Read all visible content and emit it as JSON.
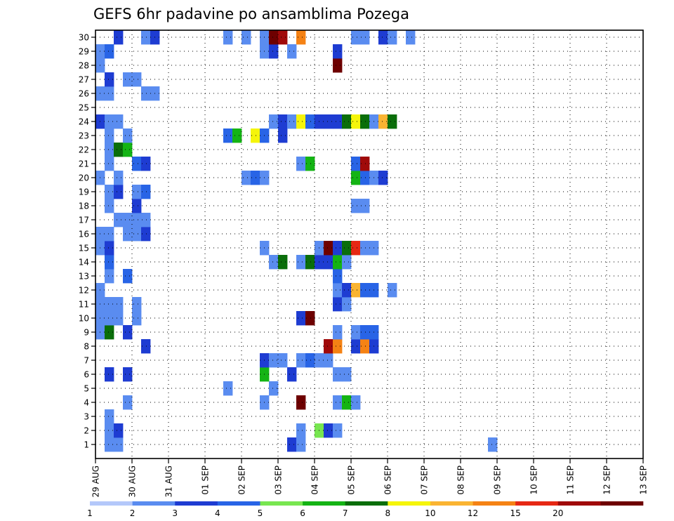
{
  "chart_data": {
    "type": "heatmap",
    "title": "GEFS 6hr padavine po ansamblima Pozega",
    "xlabel": "",
    "ylabel": "",
    "y_ticks": [
      "1",
      "2",
      "3",
      "4",
      "5",
      "6",
      "7",
      "8",
      "9",
      "10",
      "11",
      "12",
      "13",
      "14",
      "15",
      "16",
      "17",
      "18",
      "19",
      "20",
      "21",
      "22",
      "23",
      "24",
      "25",
      "26",
      "27",
      "28",
      "29",
      "30"
    ],
    "x_ticks": [
      "29 AUG",
      "30 AUG",
      "31 AUG",
      "01 SEP",
      "02 SEP",
      "03 SEP",
      "04 SEP",
      "05 SEP",
      "06 SEP",
      "07 SEP",
      "08 SEP",
      "09 SEP",
      "10 SEP",
      "11 SEP",
      "12 SEP",
      "13 SEP"
    ],
    "x_range": [
      "29 AUG 00Z",
      "13 SEP 00Z"
    ],
    "time_step_hours": 6,
    "y_range": [
      1,
      30
    ],
    "grid": true,
    "colorbar": {
      "labels": [
        "1",
        "2",
        "3",
        "4",
        "5",
        "6",
        "7",
        "8",
        "10",
        "12",
        "15",
        "20"
      ],
      "colors": [
        "#b4c8fa",
        "#5a8cf0",
        "#1e3cd2",
        "#2864e6",
        "#78e650",
        "#14b414",
        "#0a6e0a",
        "#f5f50a",
        "#fab432",
        "#f58214",
        "#e62814",
        "#a00a0a",
        "#6e0000"
      ]
    },
    "cells": [
      {
        "m": 1,
        "t": 1,
        "c": 1
      },
      {
        "m": 1,
        "t": 2,
        "c": 1
      },
      {
        "m": 1,
        "t": 21,
        "c": 2
      },
      {
        "m": 1,
        "t": 22,
        "c": 1
      },
      {
        "m": 1,
        "t": 43,
        "c": 1
      },
      {
        "m": 2,
        "t": 1,
        "c": 1
      },
      {
        "m": 2,
        "t": 2,
        "c": 2
      },
      {
        "m": 2,
        "t": 22,
        "c": 1
      },
      {
        "m": 2,
        "t": 24,
        "c": 4
      },
      {
        "m": 2,
        "t": 25,
        "c": 2
      },
      {
        "m": 2,
        "t": 26,
        "c": 1
      },
      {
        "m": 3,
        "t": 1,
        "c": 1
      },
      {
        "m": 4,
        "t": 3,
        "c": 1
      },
      {
        "m": 4,
        "t": 18,
        "c": 1
      },
      {
        "m": 4,
        "t": 22,
        "c": 12
      },
      {
        "m": 4,
        "t": 26,
        "c": 1
      },
      {
        "m": 4,
        "t": 27,
        "c": 5
      },
      {
        "m": 4,
        "t": 28,
        "c": 1
      },
      {
        "m": 5,
        "t": 14,
        "c": 1
      },
      {
        "m": 5,
        "t": 19,
        "c": 1
      },
      {
        "m": 6,
        "t": 1,
        "c": 2
      },
      {
        "m": 6,
        "t": 3,
        "c": 2
      },
      {
        "m": 6,
        "t": 18,
        "c": 5
      },
      {
        "m": 6,
        "t": 21,
        "c": 2
      },
      {
        "m": 6,
        "t": 26,
        "c": 1
      },
      {
        "m": 6,
        "t": 27,
        "c": 1
      },
      {
        "m": 7,
        "t": 18,
        "c": 2
      },
      {
        "m": 7,
        "t": 19,
        "c": 1
      },
      {
        "m": 7,
        "t": 20,
        "c": 1
      },
      {
        "m": 7,
        "t": 22,
        "c": 1
      },
      {
        "m": 7,
        "t": 23,
        "c": 3
      },
      {
        "m": 7,
        "t": 24,
        "c": 1
      },
      {
        "m": 7,
        "t": 25,
        "c": 1
      },
      {
        "m": 8,
        "t": 5,
        "c": 2
      },
      {
        "m": 8,
        "t": 25,
        "c": 11
      },
      {
        "m": 8,
        "t": 26,
        "c": 9
      },
      {
        "m": 8,
        "t": 28,
        "c": 2
      },
      {
        "m": 8,
        "t": 29,
        "c": 9
      },
      {
        "m": 8,
        "t": 30,
        "c": 2
      },
      {
        "m": 9,
        "t": 0,
        "c": 1
      },
      {
        "m": 9,
        "t": 1,
        "c": 6
      },
      {
        "m": 9,
        "t": 3,
        "c": 2
      },
      {
        "m": 9,
        "t": 26,
        "c": 1
      },
      {
        "m": 9,
        "t": 28,
        "c": 1
      },
      {
        "m": 9,
        "t": 29,
        "c": 3
      },
      {
        "m": 9,
        "t": 30,
        "c": 3
      },
      {
        "m": 10,
        "t": 0,
        "c": 1
      },
      {
        "m": 10,
        "t": 1,
        "c": 1
      },
      {
        "m": 10,
        "t": 2,
        "c": 1
      },
      {
        "m": 10,
        "t": 4,
        "c": 1
      },
      {
        "m": 10,
        "t": 22,
        "c": 2
      },
      {
        "m": 10,
        "t": 23,
        "c": 12
      },
      {
        "m": 11,
        "t": 0,
        "c": 1
      },
      {
        "m": 11,
        "t": 1,
        "c": 1
      },
      {
        "m": 11,
        "t": 2,
        "c": 1
      },
      {
        "m": 11,
        "t": 4,
        "c": 1
      },
      {
        "m": 11,
        "t": 26,
        "c": 2
      },
      {
        "m": 11,
        "t": 27,
        "c": 1
      },
      {
        "m": 12,
        "t": 0,
        "c": 1
      },
      {
        "m": 12,
        "t": 26,
        "c": 1
      },
      {
        "m": 12,
        "t": 27,
        "c": 2
      },
      {
        "m": 12,
        "t": 28,
        "c": 8
      },
      {
        "m": 12,
        "t": 29,
        "c": 3
      },
      {
        "m": 12,
        "t": 30,
        "c": 3
      },
      {
        "m": 12,
        "t": 32,
        "c": 1
      },
      {
        "m": 13,
        "t": 1,
        "c": 1
      },
      {
        "m": 13,
        "t": 3,
        "c": 3
      },
      {
        "m": 13,
        "t": 26,
        "c": 3
      },
      {
        "m": 14,
        "t": 1,
        "c": 3
      },
      {
        "m": 14,
        "t": 19,
        "c": 1
      },
      {
        "m": 14,
        "t": 20,
        "c": 6
      },
      {
        "m": 14,
        "t": 22,
        "c": 1
      },
      {
        "m": 14,
        "t": 23,
        "c": 6
      },
      {
        "m": 14,
        "t": 24,
        "c": 2
      },
      {
        "m": 14,
        "t": 25,
        "c": 2
      },
      {
        "m": 14,
        "t": 26,
        "c": 5
      },
      {
        "m": 14,
        "t": 27,
        "c": 1
      },
      {
        "m": 15,
        "t": 0,
        "c": 1
      },
      {
        "m": 15,
        "t": 1,
        "c": 2
      },
      {
        "m": 15,
        "t": 18,
        "c": 1
      },
      {
        "m": 15,
        "t": 24,
        "c": 1
      },
      {
        "m": 15,
        "t": 25,
        "c": 12
      },
      {
        "m": 15,
        "t": 26,
        "c": 2
      },
      {
        "m": 15,
        "t": 27,
        "c": 6
      },
      {
        "m": 15,
        "t": 28,
        "c": 10
      },
      {
        "m": 15,
        "t": 29,
        "c": 1
      },
      {
        "m": 15,
        "t": 30,
        "c": 1
      },
      {
        "m": 16,
        "t": 0,
        "c": 1
      },
      {
        "m": 16,
        "t": 1,
        "c": 1
      },
      {
        "m": 16,
        "t": 3,
        "c": 1
      },
      {
        "m": 16,
        "t": 4,
        "c": 1
      },
      {
        "m": 16,
        "t": 5,
        "c": 2
      },
      {
        "m": 17,
        "t": 2,
        "c": 1
      },
      {
        "m": 17,
        "t": 3,
        "c": 1
      },
      {
        "m": 17,
        "t": 4,
        "c": 1
      },
      {
        "m": 17,
        "t": 5,
        "c": 1
      },
      {
        "m": 18,
        "t": 1,
        "c": 1
      },
      {
        "m": 18,
        "t": 4,
        "c": 2
      },
      {
        "m": 18,
        "t": 28,
        "c": 1
      },
      {
        "m": 18,
        "t": 29,
        "c": 1
      },
      {
        "m": 19,
        "t": 1,
        "c": 1
      },
      {
        "m": 19,
        "t": 2,
        "c": 2
      },
      {
        "m": 19,
        "t": 4,
        "c": 1
      },
      {
        "m": 19,
        "t": 5,
        "c": 3
      },
      {
        "m": 20,
        "t": 0,
        "c": 1
      },
      {
        "m": 20,
        "t": 2,
        "c": 1
      },
      {
        "m": 20,
        "t": 16,
        "c": 1
      },
      {
        "m": 20,
        "t": 17,
        "c": 3
      },
      {
        "m": 20,
        "t": 18,
        "c": 1
      },
      {
        "m": 20,
        "t": 28,
        "c": 5
      },
      {
        "m": 20,
        "t": 29,
        "c": 3
      },
      {
        "m": 20,
        "t": 30,
        "c": 1
      },
      {
        "m": 20,
        "t": 31,
        "c": 2
      },
      {
        "m": 21,
        "t": 1,
        "c": 1
      },
      {
        "m": 21,
        "t": 4,
        "c": 3
      },
      {
        "m": 21,
        "t": 5,
        "c": 2
      },
      {
        "m": 21,
        "t": 22,
        "c": 1
      },
      {
        "m": 21,
        "t": 23,
        "c": 5
      },
      {
        "m": 21,
        "t": 28,
        "c": 3
      },
      {
        "m": 21,
        "t": 29,
        "c": 11
      },
      {
        "m": 22,
        "t": 1,
        "c": 1
      },
      {
        "m": 22,
        "t": 2,
        "c": 6
      },
      {
        "m": 22,
        "t": 3,
        "c": 5
      },
      {
        "m": 23,
        "t": 1,
        "c": 1
      },
      {
        "m": 23,
        "t": 3,
        "c": 1
      },
      {
        "m": 23,
        "t": 14,
        "c": 3
      },
      {
        "m": 23,
        "t": 15,
        "c": 5
      },
      {
        "m": 23,
        "t": 17,
        "c": 7
      },
      {
        "m": 23,
        "t": 18,
        "c": 3
      },
      {
        "m": 23,
        "t": 20,
        "c": 2
      },
      {
        "m": 24,
        "t": 0,
        "c": 2
      },
      {
        "m": 24,
        "t": 1,
        "c": 1
      },
      {
        "m": 24,
        "t": 2,
        "c": 1
      },
      {
        "m": 24,
        "t": 19,
        "c": 1
      },
      {
        "m": 24,
        "t": 20,
        "c": 2
      },
      {
        "m": 24,
        "t": 21,
        "c": 1
      },
      {
        "m": 24,
        "t": 22,
        "c": 7
      },
      {
        "m": 24,
        "t": 23,
        "c": 3
      },
      {
        "m": 24,
        "t": 24,
        "c": 2
      },
      {
        "m": 24,
        "t": 25,
        "c": 2
      },
      {
        "m": 24,
        "t": 26,
        "c": 2
      },
      {
        "m": 24,
        "t": 27,
        "c": 6
      },
      {
        "m": 24,
        "t": 28,
        "c": 7
      },
      {
        "m": 24,
        "t": 29,
        "c": 6
      },
      {
        "m": 24,
        "t": 30,
        "c": 1
      },
      {
        "m": 24,
        "t": 31,
        "c": 8
      },
      {
        "m": 24,
        "t": 32,
        "c": 6
      },
      {
        "m": 26,
        "t": 0,
        "c": 1
      },
      {
        "m": 26,
        "t": 1,
        "c": 1
      },
      {
        "m": 26,
        "t": 5,
        "c": 1
      },
      {
        "m": 26,
        "t": 6,
        "c": 1
      },
      {
        "m": 27,
        "t": 1,
        "c": 2
      },
      {
        "m": 27,
        "t": 3,
        "c": 1
      },
      {
        "m": 27,
        "t": 4,
        "c": 1
      },
      {
        "m": 28,
        "t": 0,
        "c": 1
      },
      {
        "m": 28,
        "t": 26,
        "c": 12
      },
      {
        "m": 29,
        "t": 0,
        "c": 1
      },
      {
        "m": 29,
        "t": 1,
        "c": 3
      },
      {
        "m": 29,
        "t": 18,
        "c": 1
      },
      {
        "m": 29,
        "t": 19,
        "c": 2
      },
      {
        "m": 29,
        "t": 21,
        "c": 1
      },
      {
        "m": 29,
        "t": 26,
        "c": 2
      },
      {
        "m": 30,
        "t": 2,
        "c": 2
      },
      {
        "m": 30,
        "t": 5,
        "c": 1
      },
      {
        "m": 30,
        "t": 6,
        "c": 2
      },
      {
        "m": 30,
        "t": 14,
        "c": 1
      },
      {
        "m": 30,
        "t": 16,
        "c": 1
      },
      {
        "m": 30,
        "t": 18,
        "c": 1
      },
      {
        "m": 30,
        "t": 19,
        "c": 12
      },
      {
        "m": 30,
        "t": 20,
        "c": 11
      },
      {
        "m": 30,
        "t": 22,
        "c": 9
      },
      {
        "m": 30,
        "t": 28,
        "c": 1
      },
      {
        "m": 30,
        "t": 29,
        "c": 1
      },
      {
        "m": 30,
        "t": 31,
        "c": 2
      },
      {
        "m": 30,
        "t": 32,
        "c": 1
      },
      {
        "m": 30,
        "t": 34,
        "c": 1
      }
    ]
  }
}
